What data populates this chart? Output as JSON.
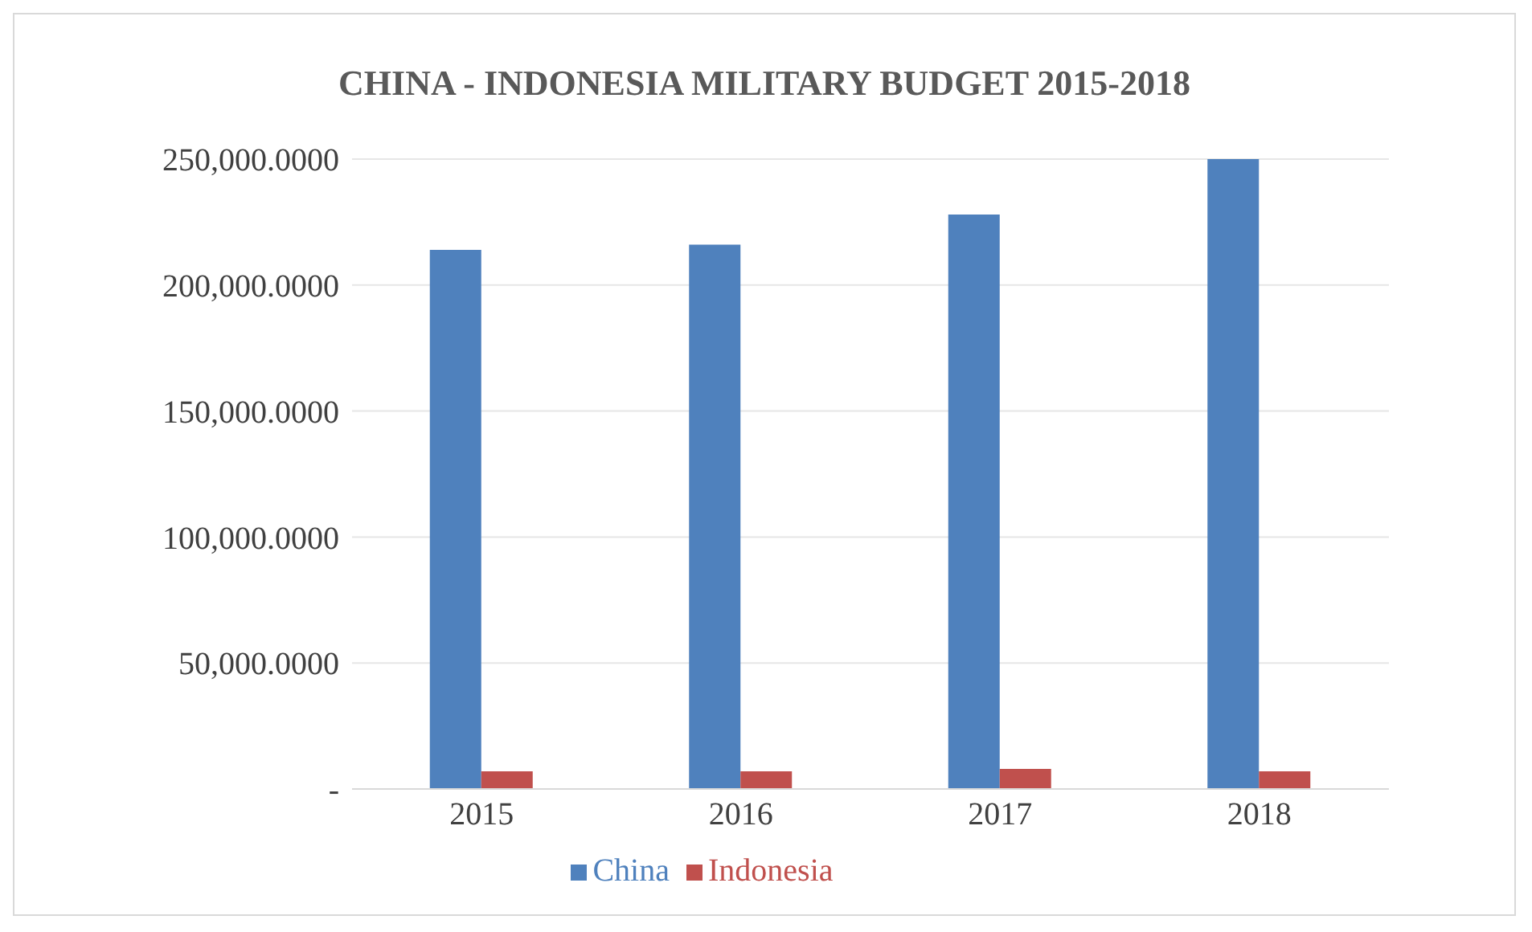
{
  "chart_data": {
    "type": "bar",
    "title": "CHINA - INDONESIA MILITARY BUDGET 2015-2018",
    "categories": [
      "2015",
      "2016",
      "2017",
      "2018"
    ],
    "series": [
      {
        "name": "China",
        "color": "#4f81bd",
        "values": [
          214000,
          216000,
          228000,
          250000
        ]
      },
      {
        "name": "Indonesia",
        "color": "#c0504d",
        "values": [
          7000,
          7000,
          8000,
          7000
        ]
      }
    ],
    "ylim": [
      0,
      250000
    ],
    "yticks": [
      {
        "value": 0,
        "label": "-"
      },
      {
        "value": 50000,
        "label": "50,000.0000"
      },
      {
        "value": 100000,
        "label": "100,000.0000"
      },
      {
        "value": 150000,
        "label": "150,000.0000"
      },
      {
        "value": 200000,
        "label": "200,000.0000"
      },
      {
        "value": 250000,
        "label": "250,000.0000"
      }
    ],
    "grid": "y",
    "legend": "bottom"
  }
}
